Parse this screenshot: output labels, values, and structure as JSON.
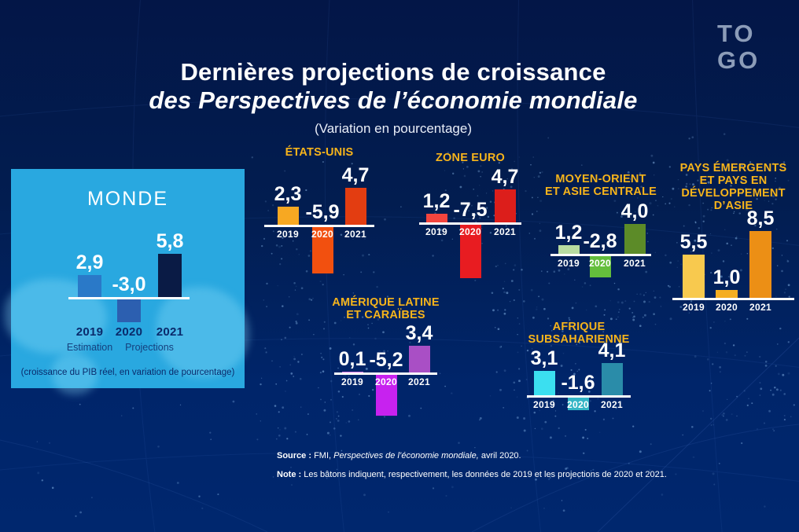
{
  "header": {
    "title_line1": "Dernières projections de croissance",
    "title_line2": "des Perspectives de l’économie mondiale",
    "subtitle": "(Variation en pourcentage)"
  },
  "logo": {
    "line1": "TO",
    "line2": "GO"
  },
  "monde_panel": {
    "caption": "(croissance du PIB réel, en variation de pourcentage)",
    "sub_label_2019": "Estimation",
    "sub_label_2020": "Projections",
    "background_color": "#29A8E0"
  },
  "footer": {
    "source_label": "Source :",
    "source_text_regular": "FMI,",
    "source_text_italic": "Perspectives de l’économie mondiale,",
    "source_text_end": "avril 2020.",
    "note_label": "Note :",
    "note_text": "Les bâtons indiquent, respectivement, les données de 2019 et les projections de 2020 et 2021."
  },
  "colors": {
    "accent_gold": "#F7B41B",
    "baseline_white": "#FFFFFF",
    "background_top": "#031647",
    "background_bottom": "#00276E",
    "logo_gray": "#8C9CB8",
    "monde_panel_blue": "#29A8E0",
    "monde_label_navy": "#0A2A6B"
  },
  "chart_data": [
    {
      "id": "monde",
      "type": "bar",
      "title": "MONDE",
      "categories": [
        "2019",
        "2020",
        "2021"
      ],
      "values": [
        2.9,
        -3.0,
        5.8
      ],
      "value_labels": [
        "2,9",
        "-3,0",
        "5,8"
      ],
      "bar_colors": [
        "#2A79C8",
        "#2C5FB0",
        "#0A1B45"
      ]
    },
    {
      "id": "us",
      "type": "bar",
      "title_lines": [
        "ÉTATS-UNIS"
      ],
      "categories": [
        "2019",
        "2020",
        "2021"
      ],
      "values": [
        2.3,
        -5.9,
        4.7
      ],
      "value_labels": [
        "2,3",
        "-5,9",
        "4,7"
      ],
      "bar_colors": [
        "#F7A822",
        "#F2500F",
        "#E33D11"
      ]
    },
    {
      "id": "euro",
      "type": "bar",
      "title_lines": [
        "ZONE EURO"
      ],
      "categories": [
        "2019",
        "2020",
        "2021"
      ],
      "values": [
        1.2,
        -7.5,
        4.7
      ],
      "value_labels": [
        "1,2",
        "-7,5",
        "4,7"
      ],
      "bar_colors": [
        "#F4453E",
        "#E81C21",
        "#DC1E1B"
      ]
    },
    {
      "id": "mena",
      "type": "bar",
      "title_lines": [
        "MOYEN-ORIENT",
        "ET ASIE CENTRALE"
      ],
      "categories": [
        "2019",
        "2020",
        "2021"
      ],
      "values": [
        1.2,
        -2.8,
        4.0
      ],
      "value_labels": [
        "1,2",
        "-2,8",
        "4,0"
      ],
      "bar_colors": [
        "#B8DCA0",
        "#64BE3C",
        "#5C8B28"
      ]
    },
    {
      "id": "asia",
      "type": "bar",
      "title_lines": [
        "PAYS ÉMERGENTS",
        "ET PAYS EN",
        "DÉVELOPPEMENT",
        "D’ASIE"
      ],
      "categories": [
        "2019",
        "2020",
        "2021"
      ],
      "values": [
        5.5,
        1.0,
        8.5
      ],
      "value_labels": [
        "5,5",
        "1,0",
        "8,5"
      ],
      "bar_colors": [
        "#F8C94E",
        "#F5AE22",
        "#EC8F15"
      ]
    },
    {
      "id": "latam",
      "type": "bar",
      "title_lines": [
        "AMÉRIQUE LATINE",
        "ET CARAÏBES"
      ],
      "categories": [
        "2019",
        "2020",
        "2021"
      ],
      "values": [
        0.1,
        -5.2,
        3.4
      ],
      "value_labels": [
        "0,1",
        "-5,2",
        "3,4"
      ],
      "bar_colors": [
        "#D975E3",
        "#C722EF",
        "#A94FC5"
      ]
    },
    {
      "id": "ssa",
      "type": "bar",
      "title_lines": [
        "AFRIQUE",
        "SUBSAHARIENNE"
      ],
      "categories": [
        "2019",
        "2020",
        "2021"
      ],
      "values": [
        3.1,
        -1.6,
        4.1
      ],
      "value_labels": [
        "3,1",
        "-1,6",
        "4,1"
      ],
      "bar_colors": [
        "#3BDFF0",
        "#33B5C5",
        "#2A8CA9"
      ]
    }
  ]
}
